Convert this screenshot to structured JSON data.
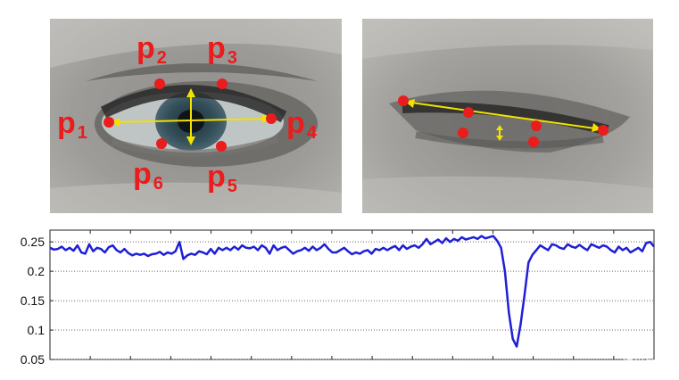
{
  "panels": {
    "open_eye": {
      "landmarks": [
        {
          "label": "p",
          "sub": "1"
        },
        {
          "label": "p",
          "sub": "2"
        },
        {
          "label": "p",
          "sub": "3"
        },
        {
          "label": "p",
          "sub": "4"
        },
        {
          "label": "p",
          "sub": "5"
        },
        {
          "label": "p",
          "sub": "6"
        }
      ]
    },
    "closed_eye": {}
  },
  "colors": {
    "landmark": "#ea1c1c",
    "measure_line": "#f2e200",
    "series": "#1f1fd6",
    "grid": "#666666"
  },
  "chart_data": {
    "type": "line",
    "ylim": [
      0.05,
      0.27
    ],
    "yticks": [
      0.25,
      0.2,
      0.15,
      0.1,
      0.05
    ],
    "ytick_labels": [
      "0.25",
      "0.2",
      "0.15",
      "0.1",
      "0.05"
    ],
    "grid": "horizontal dotted",
    "series": [
      {
        "values": [
          0.24,
          0.237,
          0.238,
          0.242,
          0.236,
          0.24,
          0.235,
          0.244,
          0.232,
          0.23,
          0.246,
          0.234,
          0.24,
          0.238,
          0.232,
          0.241,
          0.244,
          0.236,
          0.232,
          0.238,
          0.231,
          0.227,
          0.23,
          0.228,
          0.23,
          0.226,
          0.229,
          0.23,
          0.233,
          0.228,
          0.232,
          0.23,
          0.234,
          0.25,
          0.221,
          0.227,
          0.23,
          0.228,
          0.234,
          0.232,
          0.229,
          0.238,
          0.23,
          0.24,
          0.236,
          0.24,
          0.236,
          0.242,
          0.237,
          0.244,
          0.24,
          0.239,
          0.242,
          0.236,
          0.244,
          0.24,
          0.23,
          0.244,
          0.236,
          0.24,
          0.242,
          0.236,
          0.23,
          0.234,
          0.236,
          0.24,
          0.235,
          0.242,
          0.236,
          0.24,
          0.246,
          0.238,
          0.232,
          0.232,
          0.236,
          0.24,
          0.234,
          0.229,
          0.232,
          0.23,
          0.234,
          0.236,
          0.23,
          0.238,
          0.236,
          0.24,
          0.236,
          0.24,
          0.243,
          0.236,
          0.244,
          0.238,
          0.242,
          0.244,
          0.24,
          0.246,
          0.255,
          0.246,
          0.25,
          0.254,
          0.248,
          0.256,
          0.25,
          0.255,
          0.252,
          0.258,
          0.254,
          0.256,
          0.258,
          0.255,
          0.26,
          0.256,
          0.258,
          0.26,
          0.252,
          0.24,
          0.2,
          0.13,
          0.085,
          0.072,
          0.11,
          0.16,
          0.215,
          0.228,
          0.236,
          0.244,
          0.24,
          0.236,
          0.246,
          0.244,
          0.24,
          0.238,
          0.246,
          0.242,
          0.24,
          0.245,
          0.24,
          0.236,
          0.246,
          0.243,
          0.24,
          0.244,
          0.242,
          0.236,
          0.232,
          0.242,
          0.236,
          0.24,
          0.232,
          0.236,
          0.24,
          0.234,
          0.248,
          0.25,
          0.242
        ]
      }
    ]
  },
  "watermark": "CSDN @视觉智能"
}
